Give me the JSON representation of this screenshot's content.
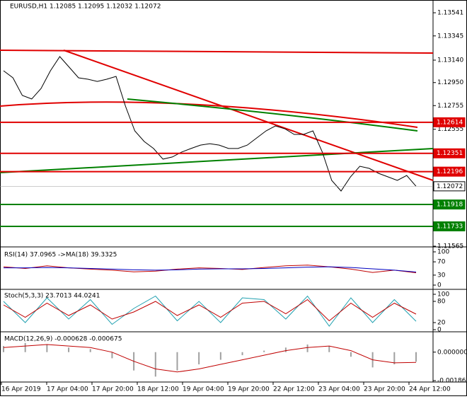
{
  "chart_data": [
    {
      "type": "line",
      "title": "EURUSD,H1  1.12085 1.12095 1.12032 1.12072",
      "color": "#000000",
      "values": [
        1.1305,
        1.1299,
        1.12841,
        1.12811,
        1.129,
        1.1305,
        1.1317,
        1.1308,
        1.1299,
        1.12978,
        1.1296,
        1.12978,
        1.13002,
        1.12751,
        1.12541,
        1.12451,
        1.12392,
        1.12302,
        1.1232,
        1.12362,
        1.12392,
        1.12421,
        1.12433,
        1.12421,
        1.12392,
        1.12392,
        1.12421,
        1.12481,
        1.12541,
        1.12583,
        1.12559,
        1.12511,
        1.12511,
        1.12541,
        1.12362,
        1.12122,
        1.12032,
        1.12152,
        1.12242,
        1.12224,
        1.12182,
        1.12152,
        1.12122,
        1.12164,
        1.12072
      ],
      "ylim": [
        1.11565,
        1.13649
      ],
      "yticks": [
        1.13541,
        1.13345,
        {
          "value": 1.1314,
          "label": "1.13140"
        },
        {
          "value": 1.1295,
          "label": "1.12950"
        },
        1.12755,
        1.12555,
        1.11565
      ],
      "levels": [
        {
          "value": 1.12614,
          "color": "#e00000"
        },
        {
          "value": 1.12351,
          "color": "#e00000"
        },
        {
          "value": 1.12196,
          "color": "#e00000"
        },
        {
          "value": 1.12072,
          "color": "#000000"
        },
        {
          "value": 1.11918,
          "color": "#008000"
        },
        {
          "value": 1.11733,
          "color": "#008000"
        }
      ],
      "x_axis_labels": [
        "16 Apr 2019",
        "17 Apr 04:00",
        "17 Apr 20:00",
        "18 Apr 12:00",
        "19 Apr 04:00",
        "19 Apr 20:00",
        "22 Apr 12:00",
        "23 Apr 04:00",
        "23 Apr 20:00",
        "24 Apr 12:00"
      ]
    },
    {
      "type": "line",
      "title": "RSI(14) 37.0965 ->MA(18) 39.3325",
      "ylim": [
        0,
        100
      ],
      "yticks": [
        100,
        70,
        30,
        0
      ],
      "series": [
        {
          "color": "#c00000",
          "values": [
            55,
            50,
            58,
            52,
            48,
            45,
            40,
            42,
            48,
            52,
            50,
            47,
            53,
            58,
            60,
            55,
            48,
            38,
            45,
            37.0965
          ]
        },
        {
          "color": "#0000c0",
          "values": [
            52,
            52,
            53,
            52,
            50,
            48,
            46,
            45,
            46,
            48,
            49,
            49,
            50,
            52,
            54,
            55,
            53,
            49,
            45,
            39.3325
          ]
        }
      ]
    },
    {
      "type": "line",
      "title": "Stoch(5,3,3) 23.7013 44.0241",
      "ylim": [
        0,
        100
      ],
      "yticks": [
        100,
        80,
        20,
        0
      ],
      "series": [
        {
          "color": "#20a0b0",
          "values": [
            80,
            20,
            90,
            30,
            85,
            15,
            60,
            95,
            25,
            80,
            20,
            90,
            85,
            30,
            95,
            10,
            90,
            20,
            85,
            23.7013
          ]
        },
        {
          "color": "#c00000",
          "values": [
            70,
            35,
            75,
            40,
            70,
            30,
            50,
            80,
            40,
            70,
            35,
            75,
            80,
            45,
            85,
            25,
            75,
            35,
            75,
            44.0241
          ]
        }
      ]
    },
    {
      "type": "bar",
      "title": "MACD(12,26,9) -0.000628 -0.000675",
      "ylim": [
        -0.001863,
        0.0011
      ],
      "yticks": [
        {
          "value": 0,
          "label": "0.000000"
        },
        -0.001863
      ],
      "color": "#a0a0a0",
      "values": [
        0.0004,
        0.0006,
        0.0005,
        0.0003,
        0.0002,
        -0.0004,
        -0.0012,
        -0.0016,
        -0.0012,
        -0.0008,
        -0.0005,
        -0.0002,
        0.0001,
        0.0003,
        0.0005,
        0.0004,
        -0.0003,
        -0.001,
        -0.0008,
        -0.000628
      ],
      "series": [
        {
          "color": "#c00000",
          "values": [
            0.0003,
            0.0004,
            0.0005,
            0.0004,
            0.0003,
            0,
            -0.0006,
            -0.0011,
            -0.0013,
            -0.0011,
            -0.0008,
            -0.0005,
            -0.0002,
            0.0001,
            0.0003,
            0.0004,
            0.0001,
            -0.0005,
            -0.0007,
            -0.000675
          ]
        }
      ]
    }
  ]
}
